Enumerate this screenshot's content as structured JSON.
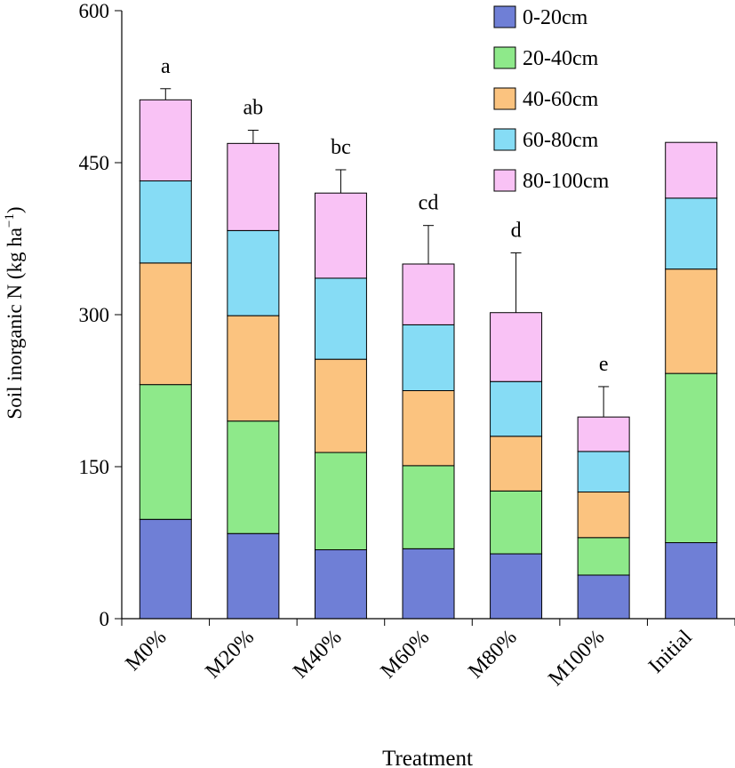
{
  "chart_data": {
    "type": "bar",
    "stacked": true,
    "categories": [
      "M0%",
      "M20%",
      "M40%",
      "M60%",
      "M80%",
      "M100%",
      "Initial"
    ],
    "series": [
      {
        "name": "0-20cm",
        "color": "#6f7fd6",
        "values": [
          98,
          84,
          68,
          69,
          64,
          43,
          75
        ]
      },
      {
        "name": "20-40cm",
        "color": "#8ee98a",
        "values": [
          133,
          111,
          96,
          82,
          62,
          37,
          167
        ]
      },
      {
        "name": "40-60cm",
        "color": "#fbc37f",
        "values": [
          120,
          104,
          92,
          74,
          54,
          45,
          103
        ]
      },
      {
        "name": "60-80cm",
        "color": "#86dcf5",
        "values": [
          81,
          84,
          80,
          65,
          54,
          40,
          70
        ]
      },
      {
        "name": "80-100cm",
        "color": "#f9c2f5",
        "values": [
          80,
          86,
          84,
          60,
          68,
          34,
          55
        ]
      }
    ],
    "error_bars": [
      11,
      13,
      23,
      38,
      59,
      30,
      null
    ],
    "significance_letters": [
      "a",
      "ab",
      "bc",
      "cd",
      "d",
      "e",
      ""
    ],
    "title": "",
    "xlabel": "Treatment",
    "ylabel_main": "Soil inorganic N (kg ha",
    "ylabel_sup": "−1",
    "ylabel_end": ")",
    "ylim": [
      0,
      600
    ],
    "yticks": [
      "0",
      "150",
      "300",
      "450",
      "600"
    ],
    "legend_position": "top-right"
  }
}
